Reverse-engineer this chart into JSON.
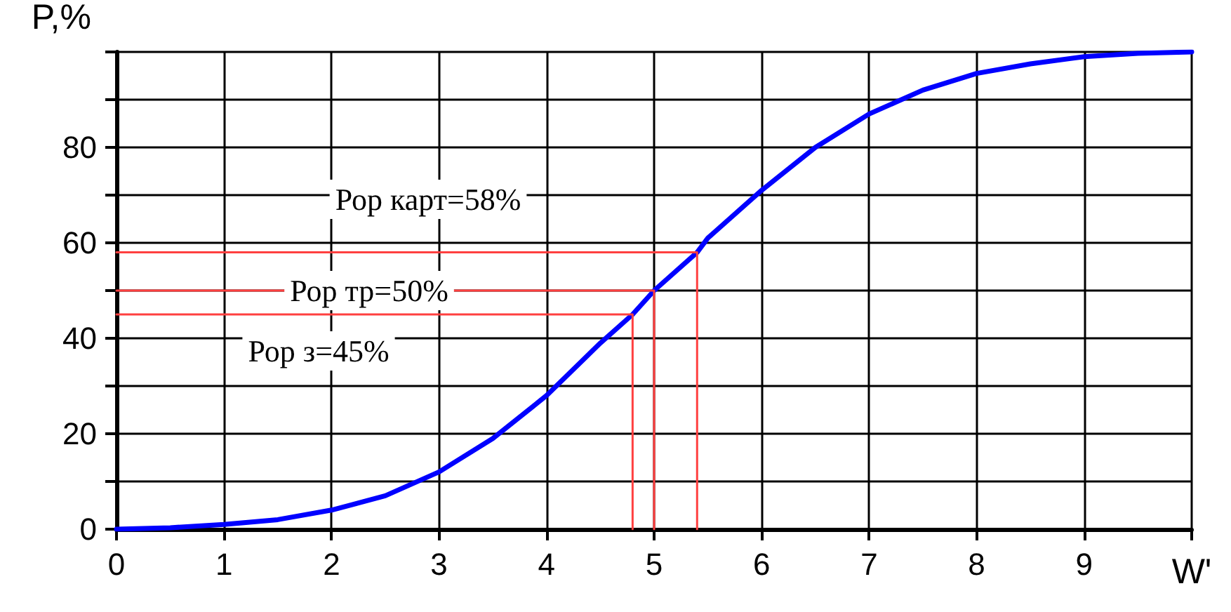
{
  "chart_data": {
    "type": "line",
    "xlabel": "W'",
    "ylabel": "P,%",
    "xlim": [
      0,
      10
    ],
    "xticks": [
      0,
      1,
      2,
      3,
      4,
      5,
      6,
      7,
      8,
      9,
      {
        "value": 10,
        "label": null
      }
    ],
    "ylim": [
      0,
      100
    ],
    "yticks": [
      0,
      {
        "value": 10,
        "label": null
      },
      20,
      {
        "value": 30,
        "label": null
      },
      40,
      {
        "value": 50,
        "label": null
      },
      60,
      {
        "value": 70,
        "label": null
      },
      80,
      {
        "value": 90,
        "label": null
      },
      {
        "value": 100,
        "label": null
      }
    ],
    "grid": true,
    "marker": "none",
    "line_style": "solid",
    "series": [
      {
        "color": "#0000ff",
        "x": [
          0,
          0.5,
          1,
          1.5,
          2,
          2.5,
          3,
          3.5,
          4,
          4.5,
          4.8,
          5,
          5.4,
          5.5,
          6,
          6.5,
          7,
          7.5,
          8,
          8.5,
          9,
          9.5,
          10
        ],
        "values": [
          0,
          0.3,
          1,
          2,
          4,
          7,
          12,
          19,
          28,
          39,
          45,
          50,
          58,
          61,
          71,
          80,
          87,
          92,
          95.5,
          97.5,
          99,
          99.7,
          100
        ]
      },
      {
        "color": "#ff4040",
        "x": [
          0,
          5.4,
          5.4
        ],
        "values": [
          58,
          58,
          0
        ]
      },
      {
        "color": "#ff4040",
        "x": [
          0,
          5,
          5
        ],
        "values": [
          50,
          50,
          0
        ]
      },
      {
        "color": "#ff4040",
        "x": [
          0,
          4.8,
          4.8
        ],
        "values": [
          45,
          45,
          0
        ]
      }
    ],
    "annotations": [
      "Рор карт=58%",
      {
        "text": "Рор тр=50%",
        "x": 2.35,
        "y": 50
      },
      "Рор з=45%"
    ]
  }
}
